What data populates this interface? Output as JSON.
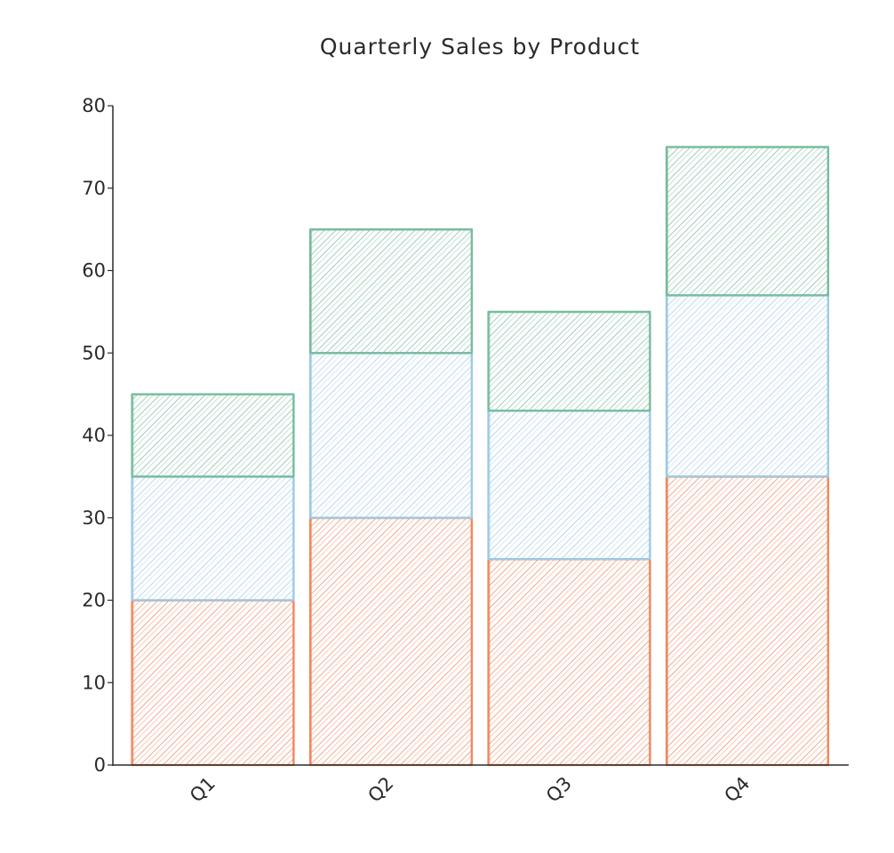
{
  "chart_data": {
    "type": "bar",
    "stacked": true,
    "title": "Quarterly Sales by Product",
    "xlabel": "",
    "ylabel": "",
    "categories": [
      "Q1",
      "Q2",
      "Q3",
      "Q4"
    ],
    "ylim": [
      0,
      80
    ],
    "yticks": [
      0,
      10,
      20,
      30,
      40,
      50,
      60,
      70,
      80
    ],
    "grid": false,
    "legend": "none",
    "series": [
      {
        "values": [
          20,
          30,
          25,
          35
        ],
        "color": "#f0885f"
      },
      {
        "values": [
          15,
          20,
          18,
          22
        ],
        "color": "#9ccae6"
      },
      {
        "values": [
          10,
          15,
          12,
          18
        ],
        "color": "#78bc9c"
      }
    ]
  }
}
